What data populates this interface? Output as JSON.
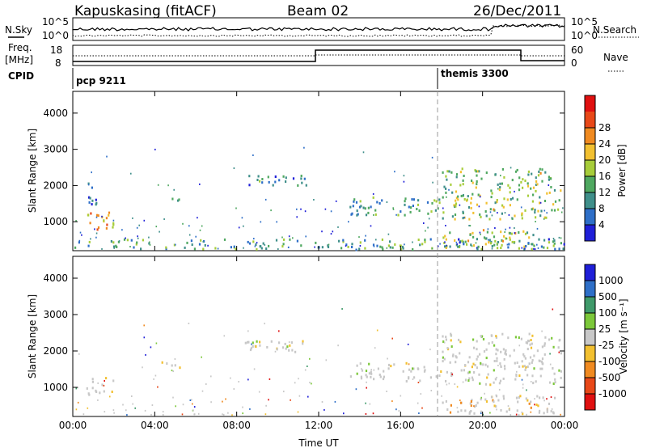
{
  "header": {
    "station": "Kapuskasing (fitACF)",
    "beam": "Beam 02",
    "date": "26/Dec/2011"
  },
  "noise_panel": {
    "left_label": "N.Sky",
    "left_ticks": [
      "10^5",
      "10^0"
    ],
    "right_ticks": [
      "10^5",
      "10^0"
    ],
    "right_label": "N.Search"
  },
  "freq_panel": {
    "left_label_1": "Freq.",
    "left_label_2": "[MHz]",
    "left_ticks": [
      "18",
      "8"
    ],
    "right_ticks": [
      "60",
      "0"
    ],
    "right_label": "Nave"
  },
  "cpid": {
    "label": "CPID",
    "programs": [
      {
        "name": "pcp 9211",
        "start_hour": 0
      },
      {
        "name": "themis 3300",
        "start_hour": 18
      }
    ]
  },
  "chart_data": [
    {
      "type": "heatmap",
      "panel": "power",
      "ylabel": "Slant Range [km]",
      "xlabel": "",
      "x_ticks": [
        "00:00",
        "04:00",
        "08:00",
        "12:00",
        "16:00",
        "20:00",
        "00:00"
      ],
      "y_ticks": [
        "1000",
        "2000",
        "3000",
        "4000"
      ],
      "ylim": [
        200,
        4600
      ],
      "xlim": [
        0,
        24
      ],
      "colorbar": {
        "label": "Power [dB]",
        "ticks": [
          "4",
          "8",
          "12",
          "16",
          "20",
          "24",
          "28"
        ],
        "colors": [
          "#1f1fd8",
          "#2e6fc8",
          "#3f8f8a",
          "#4fa860",
          "#a7cd3a",
          "#f2c030",
          "#f08a20",
          "#e84818",
          "#e01010"
        ]
      },
      "scatter_regions": [
        {
          "t0": 0.5,
          "t1": 2.0,
          "r0": 800,
          "r1": 1300,
          "level": 0.75
        },
        {
          "t0": 0.5,
          "t1": 1.2,
          "r0": 1500,
          "r1": 2100,
          "level": 0.2
        },
        {
          "t0": 4.2,
          "t1": 5.3,
          "r0": 1600,
          "r1": 1750,
          "level": 0.25
        },
        {
          "t0": 8.0,
          "t1": 11.5,
          "r0": 2000,
          "r1": 2300,
          "level": 0.25
        },
        {
          "t0": 13.5,
          "t1": 18.0,
          "r0": 1200,
          "r1": 1700,
          "level": 0.35
        },
        {
          "t0": 18.0,
          "t1": 23.8,
          "r0": 1100,
          "r1": 2500,
          "level": 0.5
        },
        {
          "t0": 18.0,
          "t1": 22.5,
          "r0": 300,
          "r1": 800,
          "level": 0.55
        },
        {
          "t0": 0.0,
          "t1": 24.0,
          "r0": 250,
          "r1": 550,
          "level": 0.35
        }
      ]
    },
    {
      "type": "heatmap",
      "panel": "velocity",
      "ylabel": "Slant Range [km]",
      "xlabel": "Time UT",
      "x_ticks": [
        "00:00",
        "04:00",
        "08:00",
        "12:00",
        "16:00",
        "20:00",
        "00:00"
      ],
      "y_ticks": [
        "1000",
        "2000",
        "3000",
        "4000"
      ],
      "ylim": [
        200,
        4600
      ],
      "xlim": [
        0,
        24
      ],
      "colorbar": {
        "label": "Velocity [m s⁻¹]",
        "ticks": [
          "1000",
          "500",
          "100",
          "25",
          "-25",
          "-100",
          "-500",
          "-1000"
        ],
        "colors": [
          "#1f1fd8",
          "#2e6fc8",
          "#3f9a6a",
          "#7cc83a",
          "#c8c8c8",
          "#f2c030",
          "#f08a20",
          "#e84818",
          "#e01010"
        ]
      },
      "scatter_regions": [
        {
          "t0": 0.5,
          "t1": 2.0,
          "r0": 800,
          "r1": 1300,
          "level": 0.5
        },
        {
          "t0": 4.2,
          "t1": 5.3,
          "r0": 1550,
          "r1": 1750,
          "level": 0.8
        },
        {
          "t0": 8.0,
          "t1": 11.5,
          "r0": 2000,
          "r1": 2300,
          "level": 0.5
        },
        {
          "t0": 13.5,
          "t1": 18.0,
          "r0": 1200,
          "r1": 1700,
          "level": 0.5
        },
        {
          "t0": 18.0,
          "t1": 23.8,
          "r0": 1100,
          "r1": 2500,
          "level": 0.5
        },
        {
          "t0": 18.0,
          "t1": 23.5,
          "r0": 300,
          "r1": 800,
          "level": 0.65
        }
      ]
    }
  ]
}
